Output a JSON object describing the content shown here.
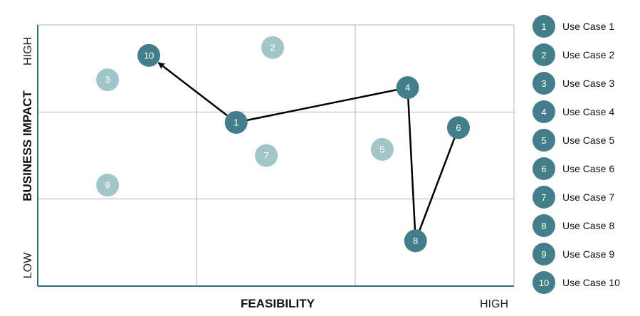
{
  "chart_data": {
    "type": "scatter",
    "xlabel": "FEASIBILITY",
    "ylabel": "BUSINESS IMPACT",
    "x_high_label": "HIGH",
    "y_high_label": "HIGH",
    "y_low_label": "LOW",
    "xlim": [
      0,
      3
    ],
    "ylim": [
      0,
      3
    ],
    "grid": true,
    "legend_position": "right",
    "colors": {
      "highlight": "#437f8b",
      "muted": "#a2c5ca",
      "axis": "#2f6f7c",
      "grid": "#b5b5b5",
      "path": "#000000"
    },
    "points": [
      {
        "label": "1",
        "name": "Use Case 1",
        "x": 1.25,
        "y": 1.88,
        "highlight": true
      },
      {
        "label": "2",
        "name": "Use Case 2",
        "x": 1.48,
        "y": 2.74,
        "highlight": false
      },
      {
        "label": "3",
        "name": "Use Case 3",
        "x": 0.44,
        "y": 2.37,
        "highlight": false
      },
      {
        "label": "4",
        "name": "Use Case 4",
        "x": 2.33,
        "y": 2.28,
        "highlight": true
      },
      {
        "label": "5",
        "name": "Use Case 5",
        "x": 2.17,
        "y": 1.57,
        "highlight": false
      },
      {
        "label": "6",
        "name": "Use Case 6",
        "x": 2.65,
        "y": 1.82,
        "highlight": true
      },
      {
        "label": "7",
        "name": "Use Case 7",
        "x": 1.44,
        "y": 1.5,
        "highlight": false
      },
      {
        "label": "8",
        "name": "Use Case 8",
        "x": 2.38,
        "y": 0.52,
        "highlight": true
      },
      {
        "label": "9",
        "name": "Use Case 9",
        "x": 0.44,
        "y": 1.16,
        "highlight": false
      },
      {
        "label": "10",
        "name": "Use Case 10",
        "x": 0.7,
        "y": 2.65,
        "highlight": true
      }
    ],
    "paths": [
      [
        "1",
        "4",
        "8",
        "6"
      ]
    ],
    "arrows": [
      [
        "1",
        "10"
      ]
    ]
  }
}
